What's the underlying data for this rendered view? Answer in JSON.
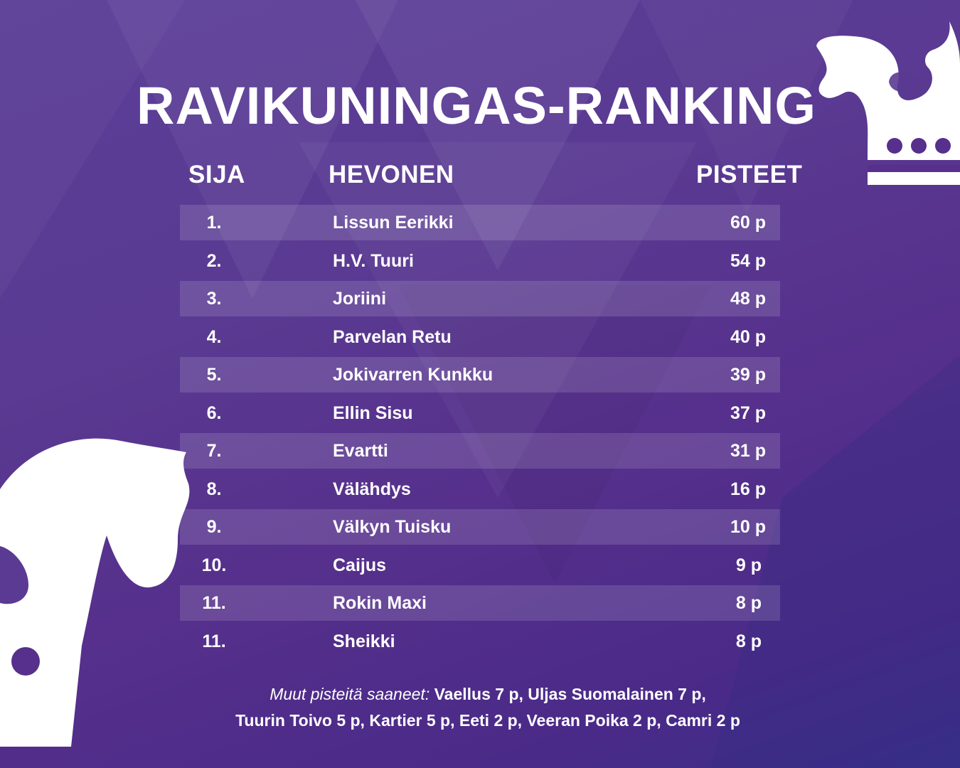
{
  "title": "RAVIKUNINGAS-RANKING",
  "headers": {
    "rank": "SIJA",
    "horse": "HEVONEN",
    "points": "PISTEET"
  },
  "rows": [
    {
      "rank": "1.",
      "horse": "Lissun Eerikki",
      "points": "60 p"
    },
    {
      "rank": "2.",
      "horse": "H.V. Tuuri",
      "points": "54 p"
    },
    {
      "rank": "3.",
      "horse": "Joriini",
      "points": "48 p"
    },
    {
      "rank": "4.",
      "horse": "Parvelan Retu",
      "points": "40 p"
    },
    {
      "rank": "5.",
      "horse": "Jokivarren Kunkku",
      "points": "39 p"
    },
    {
      "rank": "6.",
      "horse": "Ellin Sisu",
      "points": "37 p"
    },
    {
      "rank": "7.",
      "horse": "Evartti",
      "points": "31 p"
    },
    {
      "rank": "8.",
      "horse": "Välähdys",
      "points": "16 p"
    },
    {
      "rank": "9.",
      "horse": "Välkyn Tuisku",
      "points": "10 p"
    },
    {
      "rank": "10.",
      "horse": "Caijus",
      "points": "9 p"
    },
    {
      "rank": "11.",
      "horse": "Rokin Maxi",
      "points": "8 p"
    },
    {
      "rank": "11.",
      "horse": "Sheikki",
      "points": "8 p"
    }
  ],
  "footer": {
    "label": "Muut pisteitä saaneet:",
    "line1": "Vaellus 7 p, Uljas Suomalainen 7 p,",
    "line2": "Tuurin Toivo 5 p, Kartier 5 p, Eeti 2 p, Veeran Poika 2 p, Camri 2 p"
  },
  "colors": {
    "background": "#56308c",
    "text": "#ffffff",
    "row_shade": "rgba(255,255,255,0.13)"
  },
  "icons": [
    "horse-crown-icon",
    "horse-head-icon"
  ]
}
